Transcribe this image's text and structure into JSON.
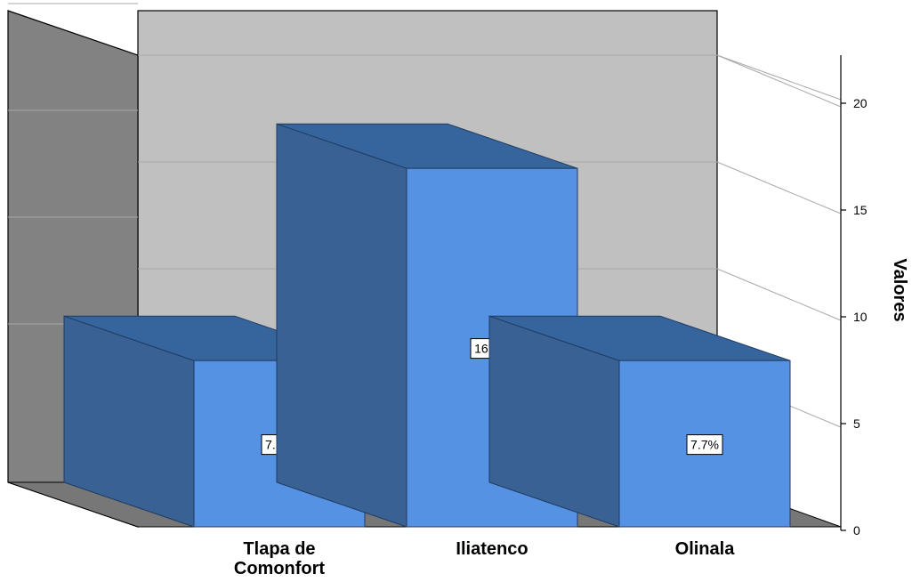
{
  "chart_data": {
    "type": "bar",
    "style": "3d",
    "categories": [
      "Tlapa de\nComonfort",
      "Iliatenco",
      "Olinala"
    ],
    "values": [
      7.7,
      16.7,
      7.7
    ],
    "data_labels": [
      "7.7%",
      "16.7%",
      "7.7%"
    ],
    "ylabel": "Valores",
    "ylim": [
      0,
      22
    ],
    "yticks": [
      0,
      5,
      10,
      15,
      20
    ],
    "grid": true,
    "legend": "none",
    "colors": {
      "bar_front": "#5592E3",
      "bar_side": "#3A6193",
      "bar_top": "#36649C",
      "back_wall": "#C0C0C0",
      "side_wall": "#828282",
      "floor": "#777777"
    }
  }
}
